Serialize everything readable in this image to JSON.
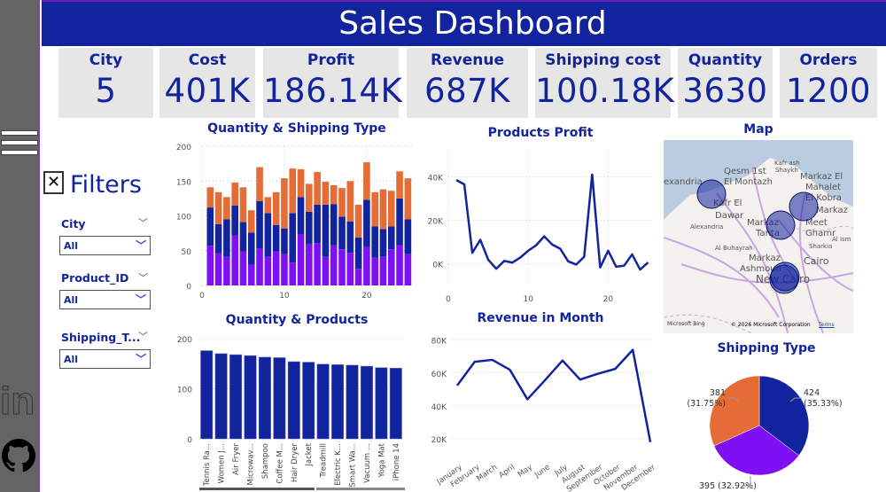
{
  "header": {
    "title": "Sales Dashboard"
  },
  "colors": {
    "primary": "#12239e",
    "purple": "#7f10f5",
    "orange": "#e66c37",
    "card": "#e6e6e6",
    "side": "#646464"
  },
  "sidebar": {
    "icons": [
      "hamburger-menu-icon",
      "linkedin-icon",
      "github-icon"
    ],
    "linkedin_glyph": "in"
  },
  "kpis": [
    {
      "label": "City",
      "value": "5"
    },
    {
      "label": "Cost",
      "value": "401K"
    },
    {
      "label": "Profit",
      "value": "186.14K"
    },
    {
      "label": "Revenue",
      "value": "687K"
    },
    {
      "label": "Shipping cost",
      "value": "100.18K"
    },
    {
      "label": "Quantity",
      "value": "3630"
    },
    {
      "label": "Orders",
      "value": "1200"
    }
  ],
  "filters": {
    "close_glyph": "✕",
    "title": "Filters",
    "items": [
      {
        "label": "City",
        "value": "All"
      },
      {
        "label": "Product_ID",
        "value": "All"
      },
      {
        "label": "Shipping_T...",
        "value": "All"
      }
    ]
  },
  "chart_data": [
    {
      "type": "bar",
      "stacked": true,
      "title": "Quantity & Shipping Type",
      "x": [
        1,
        2,
        3,
        4,
        5,
        6,
        7,
        8,
        9,
        10,
        11,
        12,
        13,
        14,
        15,
        16,
        17,
        18,
        19,
        20,
        21,
        22,
        23,
        24,
        25
      ],
      "xticks": [
        "0",
        "10",
        "20"
      ],
      "yticks": [
        "0",
        "50",
        "100",
        "150",
        "200"
      ],
      "ylim": [
        0,
        200
      ],
      "xlim": [
        0,
        25.5
      ],
      "grid": true,
      "series": [
        {
          "color": "#7f10f5",
          "values": [
            57,
            46,
            41,
            72,
            49,
            30,
            53,
            41,
            49,
            45,
            33,
            73,
            59,
            61,
            41,
            58,
            52,
            47,
            24,
            55,
            40,
            41,
            52,
            58,
            45
          ]
        },
        {
          "color": "#12239e",
          "values": [
            55,
            42,
            54,
            43,
            42,
            46,
            68,
            63,
            38,
            37,
            71,
            54,
            47,
            55,
            75,
            59,
            47,
            45,
            45,
            68,
            45,
            40,
            33,
            67,
            50
          ]
        },
        {
          "color": "#e66c37",
          "values": [
            29,
            46,
            32,
            33,
            50,
            32,
            49,
            23,
            47,
            72,
            64,
            40,
            40,
            47,
            33,
            27,
            41,
            58,
            47,
            54,
            49,
            57,
            51,
            39,
            59
          ]
        }
      ]
    },
    {
      "type": "line",
      "title": "Products Profit",
      "x": [
        1,
        2,
        3,
        4,
        5,
        6,
        7,
        8,
        9,
        10,
        11,
        12,
        13,
        14,
        15,
        16,
        17,
        18,
        19,
        20,
        21,
        22,
        23,
        24,
        25
      ],
      "values": [
        38500,
        36500,
        5000,
        11000,
        1800,
        -2300,
        1300,
        500,
        2800,
        6000,
        8500,
        12600,
        8800,
        6900,
        1100,
        -400,
        3200,
        41000,
        -1700,
        6000,
        -1400,
        -900,
        4300,
        -2700,
        600
      ],
      "xticks": [
        "0",
        "10",
        "20"
      ],
      "yticks": [
        "0K",
        "20K",
        "40K"
      ],
      "ylim": [
        -10000,
        52000
      ],
      "xlim": [
        0,
        25.5
      ],
      "grid": true,
      "color": "#12239e"
    },
    {
      "type": "bar",
      "title": "Quantity & Products",
      "categories": [
        "Tennis Ra...",
        "Women J...",
        "Air Fryer",
        "Microwav...",
        "Shampoo",
        "Coffee M...",
        "Hair Dryer",
        "Jacket",
        "Treadmill",
        "Electric K...",
        "Smart Wa...",
        "Vacuum ...",
        "Yoga Mat",
        "iPhone 14"
      ],
      "values": [
        176,
        170,
        168,
        166,
        163,
        162,
        154,
        153,
        149,
        148,
        147,
        145,
        142,
        141
      ],
      "yticks": [
        "0",
        "100",
        "200"
      ],
      "ylim": [
        0,
        200
      ],
      "grid": true,
      "color": "#12239e"
    },
    {
      "type": "line",
      "title": "Revenue in Month",
      "categories": [
        "January",
        "February",
        "March",
        "April",
        "May",
        "June",
        "July",
        "August",
        "September",
        "October",
        "November",
        "December"
      ],
      "values": [
        52400,
        66800,
        68000,
        62000,
        44000,
        55600,
        67600,
        56000,
        59500,
        62500,
        74100,
        17900
      ],
      "yticks": [
        "20K",
        "40K",
        "60K",
        "80K"
      ],
      "ylim": [
        14000,
        82000
      ],
      "grid": true,
      "color": "#12239e"
    },
    {
      "type": "pie",
      "title": "Shipping Type",
      "slices": [
        {
          "value": 424,
          "label": "424",
          "pct": "(35.33%)",
          "color": "#12239e"
        },
        {
          "value": 395,
          "label": "395 (32.92%)",
          "pct": "",
          "color": "#7f10f5"
        },
        {
          "value": 381,
          "label": "381",
          "pct": "(31.75%)",
          "color": "#e66c37"
        }
      ]
    }
  ],
  "map": {
    "title": "Map",
    "labels": [
      "exandria",
      "Qesm 1st",
      "El Montazh",
      "Kafr ash",
      "Shaykh",
      "Markaz El",
      "Mahalet",
      "El Kobra",
      "Markaz",
      "Kafr El",
      "Dawar",
      "Markaz",
      "Tanta",
      "Markaz",
      "Meet",
      "Ghamr",
      "Alexandria",
      "Al Buhayrah",
      "Sharkia",
      "Markaz",
      "Ashmoun",
      "Cairo",
      "New Cairo",
      "Al Ism"
    ],
    "attribution": "© 2026 Microsoft Corporation",
    "terms": "Terms",
    "bing": "Microsoft Bing"
  }
}
